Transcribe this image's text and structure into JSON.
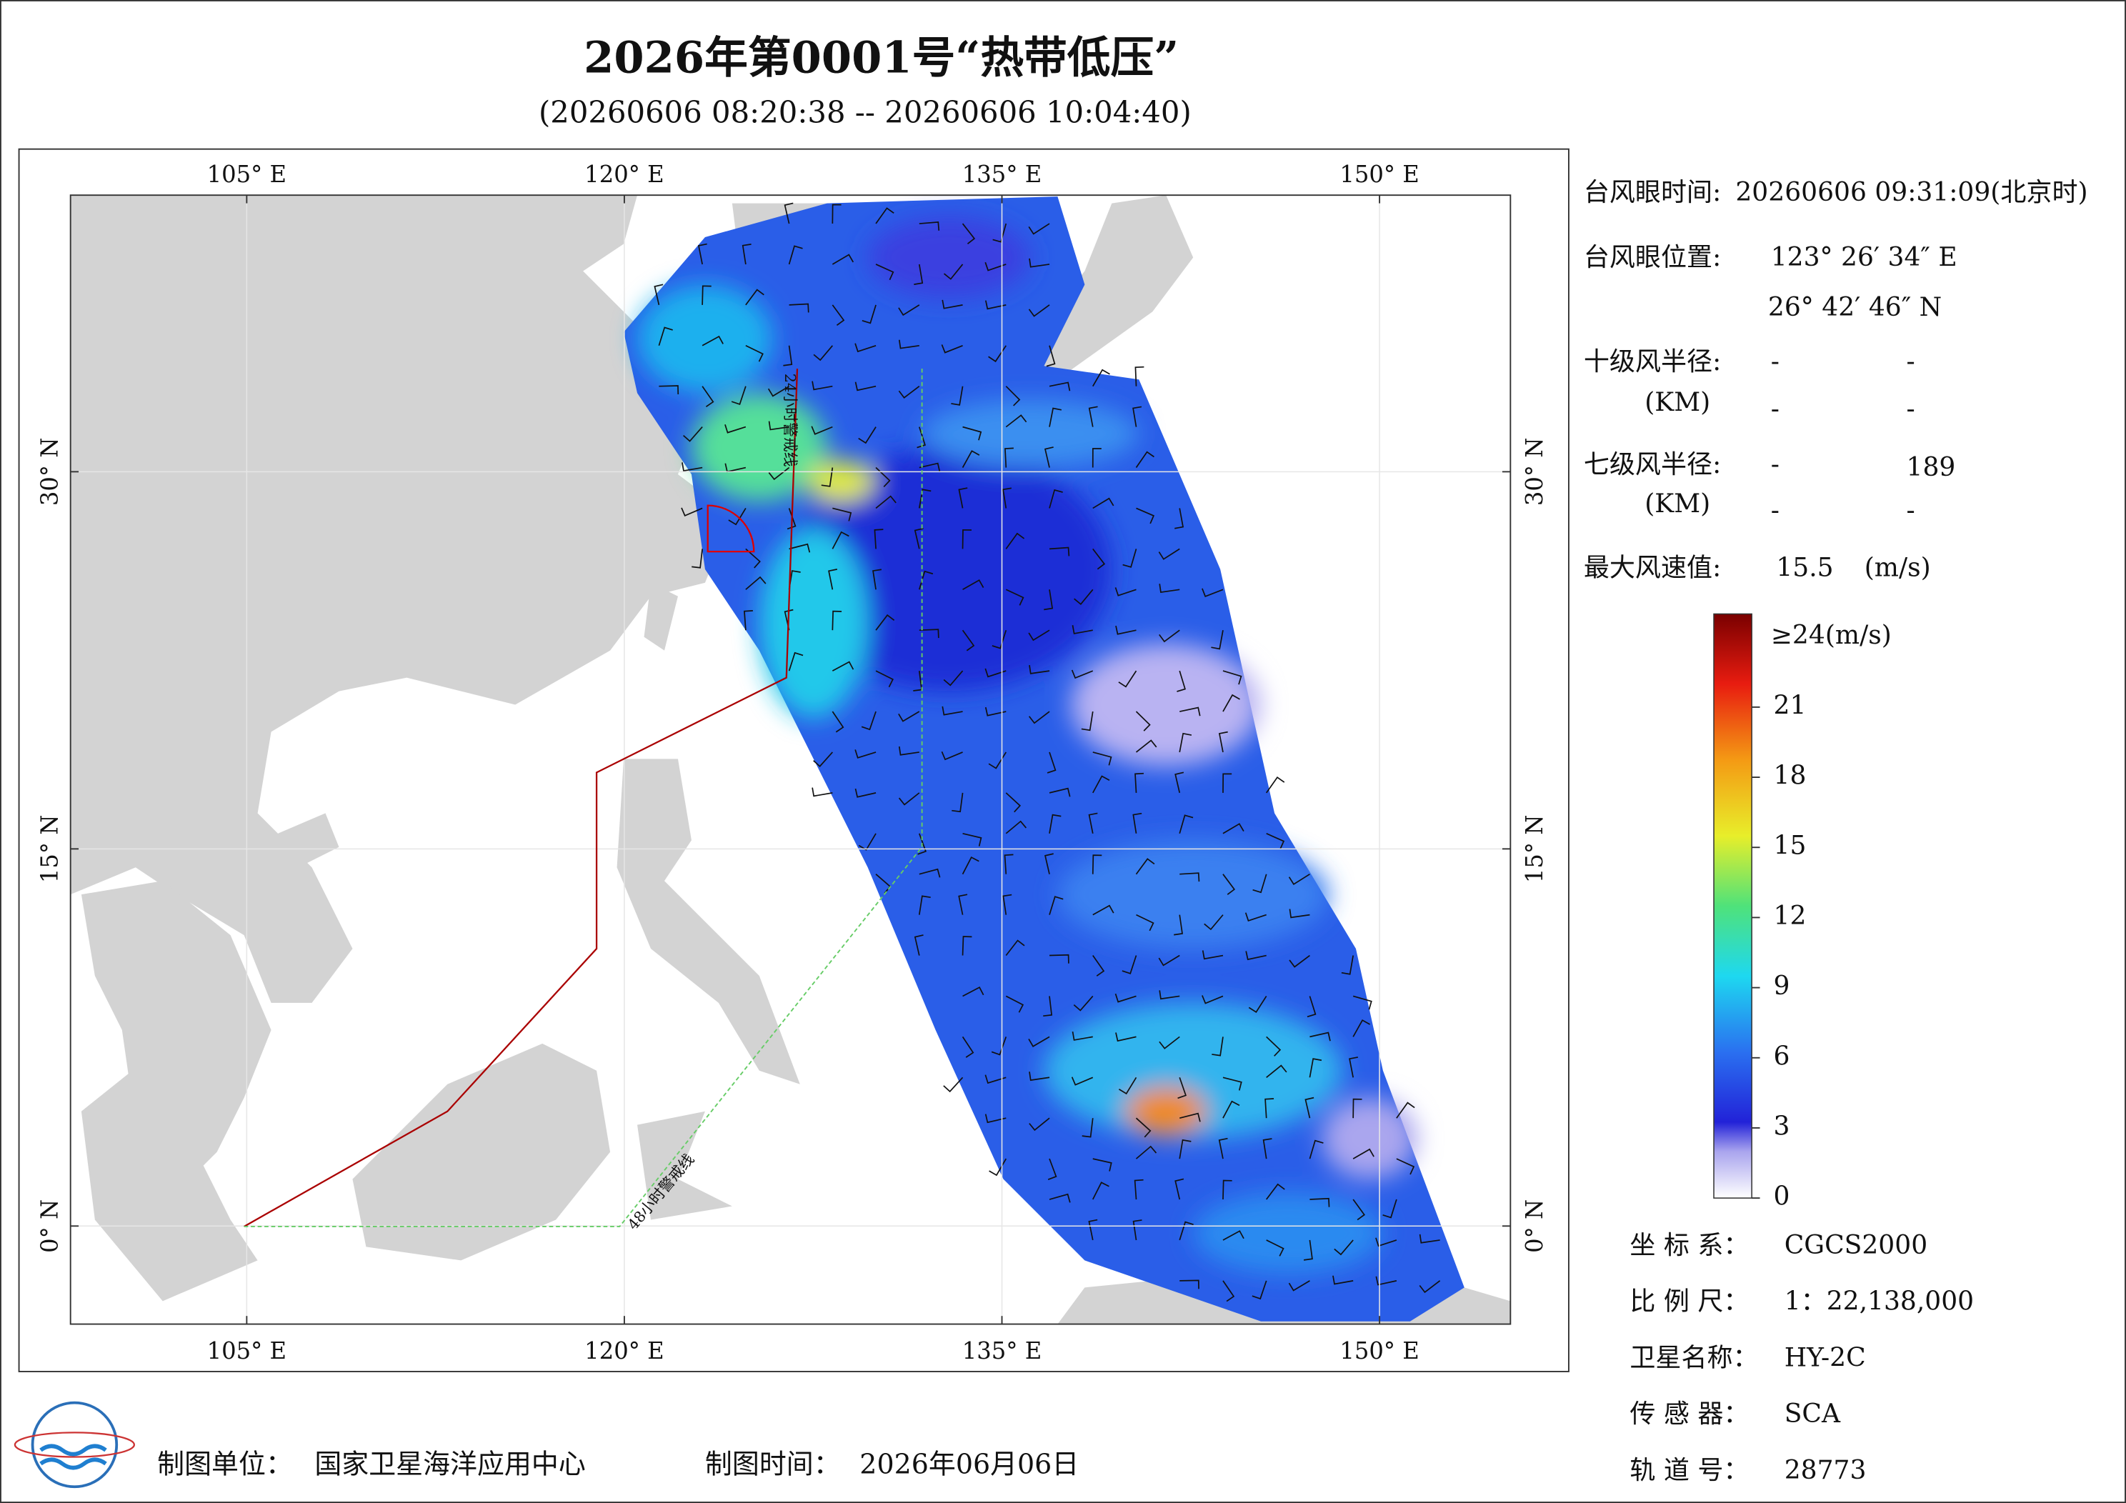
{
  "header": {
    "title": "2026年第0001号“热带低压”",
    "subtitle": "(20260606 08:20:38 -- 20260606 10:04:40)"
  },
  "map": {
    "xlim": [
      98,
      155.2
    ],
    "ylim": [
      -3.9,
      41
    ],
    "xticks": [
      {
        "value": 105,
        "label": "105° E"
      },
      {
        "value": 120,
        "label": "120° E"
      },
      {
        "value": 135,
        "label": "135° E"
      },
      {
        "value": 150,
        "label": "150° E"
      }
    ],
    "yticks": [
      {
        "value": 0,
        "label": "0° N"
      },
      {
        "value": 15,
        "label": "15° N"
      },
      {
        "value": 30,
        "label": "30° N"
      }
    ],
    "warning_24h": "24小时警戒线",
    "warning_48h": "48小时警戒线"
  },
  "info": {
    "eye_time_label": "台风眼时间:",
    "eye_time": "20260606 09:31:09(北京时)",
    "eye_pos_label": "台风眼位置:",
    "eye_lon": "123° 26′ 34″ E",
    "eye_lat": "26° 42′ 46″ N",
    "r10_label": "十级风半径:",
    "r7_label": "七级风半径:",
    "km": "(KM)",
    "dash": "-",
    "r7_value": "189",
    "max_wind_label": "最大风速值:",
    "max_wind": "15.5",
    "max_wind_unit": "(m/s)"
  },
  "colorbar": {
    "range": [
      0,
      24
    ],
    "ticks": [
      0,
      3,
      6,
      9,
      12,
      15,
      18,
      21
    ],
    "top_label": "≥24(m/s)"
  },
  "meta": [
    [
      "坐 标 系：",
      "CGCS2000"
    ],
    [
      "比 例 尺：",
      "1：22,138,000"
    ],
    [
      "卫星名称：",
      "HY-2C"
    ],
    [
      "传 感 器：",
      "SCA"
    ],
    [
      "轨 道 号：",
      "28773"
    ]
  ],
  "footer": {
    "unit_label": "制图单位：",
    "unit": "国家卫星海洋应用中心",
    "time_label": "制图时间：",
    "time": "2026年06月06日"
  }
}
